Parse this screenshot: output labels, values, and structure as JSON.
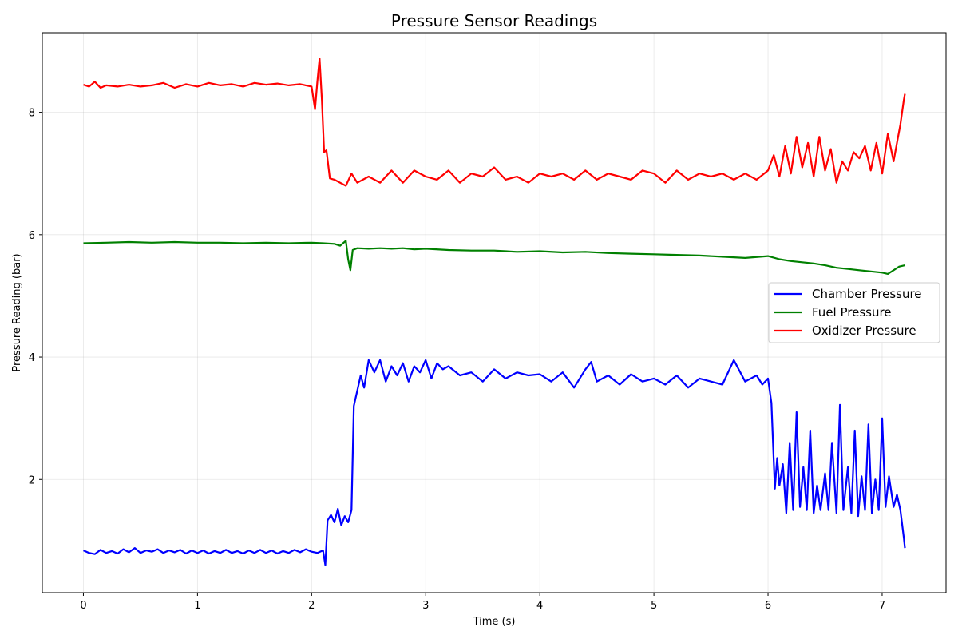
{
  "chart_data": {
    "type": "line",
    "title": "Pressure Sensor Readings",
    "xlabel": "Time (s)",
    "ylabel": "Pressure Reading (bar)",
    "xlim": [
      -0.36,
      7.56
    ],
    "ylim": [
      0.15,
      9.3
    ],
    "xticks": [
      0,
      1,
      2,
      3,
      4,
      5,
      6,
      7
    ],
    "yticks": [
      2,
      4,
      6,
      8
    ],
    "grid": true,
    "legend_position": "center-right",
    "series": [
      {
        "name": "Chamber Pressure",
        "color": "#0000ff",
        "x": [
          0,
          0.05,
          0.1,
          0.15,
          0.2,
          0.25,
          0.3,
          0.35,
          0.4,
          0.45,
          0.5,
          0.55,
          0.6,
          0.65,
          0.7,
          0.75,
          0.8,
          0.85,
          0.9,
          0.95,
          1.0,
          1.05,
          1.1,
          1.15,
          1.2,
          1.25,
          1.3,
          1.35,
          1.4,
          1.45,
          1.5,
          1.55,
          1.6,
          1.65,
          1.7,
          1.75,
          1.8,
          1.85,
          1.9,
          1.95,
          2.0,
          2.05,
          2.1,
          2.12,
          2.14,
          2.17,
          2.2,
          2.23,
          2.26,
          2.29,
          2.32,
          2.35,
          2.37,
          2.4,
          2.43,
          2.46,
          2.5,
          2.55,
          2.6,
          2.65,
          2.7,
          2.75,
          2.8,
          2.85,
          2.9,
          2.95,
          3.0,
          3.05,
          3.1,
          3.15,
          3.2,
          3.3,
          3.4,
          3.5,
          3.6,
          3.7,
          3.8,
          3.9,
          4.0,
          4.1,
          4.2,
          4.3,
          4.4,
          4.45,
          4.5,
          4.6,
          4.7,
          4.8,
          4.9,
          5.0,
          5.1,
          5.2,
          5.3,
          5.4,
          5.5,
          5.6,
          5.7,
          5.8,
          5.9,
          5.95,
          6.0,
          6.03,
          6.06,
          6.08,
          6.1,
          6.13,
          6.16,
          6.19,
          6.22,
          6.25,
          6.28,
          6.31,
          6.34,
          6.37,
          6.4,
          6.43,
          6.46,
          6.5,
          6.53,
          6.56,
          6.6,
          6.63,
          6.66,
          6.7,
          6.73,
          6.76,
          6.79,
          6.82,
          6.85,
          6.88,
          6.91,
          6.94,
          6.97,
          7.0,
          7.03,
          7.06,
          7.1,
          7.13,
          7.16,
          7.19,
          7.2
        ],
        "values": [
          0.84,
          0.8,
          0.78,
          0.85,
          0.8,
          0.83,
          0.79,
          0.86,
          0.81,
          0.88,
          0.8,
          0.84,
          0.82,
          0.86,
          0.8,
          0.84,
          0.81,
          0.85,
          0.79,
          0.84,
          0.8,
          0.84,
          0.79,
          0.83,
          0.8,
          0.85,
          0.8,
          0.83,
          0.79,
          0.84,
          0.8,
          0.85,
          0.8,
          0.84,
          0.79,
          0.83,
          0.8,
          0.85,
          0.81,
          0.86,
          0.82,
          0.8,
          0.84,
          0.6,
          1.33,
          1.42,
          1.3,
          1.52,
          1.25,
          1.4,
          1.3,
          1.5,
          3.2,
          3.45,
          3.7,
          3.5,
          3.95,
          3.75,
          3.95,
          3.6,
          3.85,
          3.7,
          3.9,
          3.6,
          3.85,
          3.75,
          3.95,
          3.65,
          3.9,
          3.8,
          3.85,
          3.7,
          3.75,
          3.6,
          3.8,
          3.65,
          3.75,
          3.7,
          3.72,
          3.6,
          3.75,
          3.5,
          3.8,
          3.92,
          3.6,
          3.7,
          3.55,
          3.72,
          3.6,
          3.65,
          3.55,
          3.7,
          3.5,
          3.65,
          3.6,
          3.55,
          3.95,
          3.6,
          3.7,
          3.55,
          3.65,
          3.25,
          1.85,
          2.35,
          1.9,
          2.25,
          1.45,
          2.6,
          1.5,
          3.1,
          1.55,
          2.2,
          1.5,
          2.8,
          1.45,
          1.9,
          1.5,
          2.1,
          1.5,
          2.6,
          1.45,
          3.22,
          1.5,
          2.2,
          1.45,
          2.8,
          1.4,
          2.05,
          1.5,
          2.9,
          1.45,
          2.0,
          1.5,
          3.0,
          1.55,
          2.05,
          1.55,
          1.75,
          1.5,
          1.05,
          0.88
        ]
      },
      {
        "name": "Fuel Pressure",
        "color": "#008000",
        "x": [
          0,
          0.2,
          0.4,
          0.6,
          0.8,
          1.0,
          1.2,
          1.4,
          1.6,
          1.8,
          2.0,
          2.1,
          2.2,
          2.25,
          2.3,
          2.32,
          2.34,
          2.36,
          2.4,
          2.5,
          2.6,
          2.7,
          2.8,
          2.9,
          3.0,
          3.2,
          3.4,
          3.6,
          3.8,
          4.0,
          4.2,
          4.4,
          4.6,
          4.8,
          5.0,
          5.2,
          5.4,
          5.6,
          5.8,
          6.0,
          6.1,
          6.2,
          6.3,
          6.4,
          6.5,
          6.6,
          6.7,
          6.8,
          6.9,
          7.0,
          7.05,
          7.1,
          7.15,
          7.2
        ],
        "values": [
          5.86,
          5.87,
          5.88,
          5.87,
          5.88,
          5.87,
          5.87,
          5.86,
          5.87,
          5.86,
          5.87,
          5.86,
          5.85,
          5.82,
          5.9,
          5.6,
          5.42,
          5.75,
          5.78,
          5.77,
          5.78,
          5.77,
          5.78,
          5.76,
          5.77,
          5.75,
          5.74,
          5.74,
          5.72,
          5.73,
          5.71,
          5.72,
          5.7,
          5.69,
          5.68,
          5.67,
          5.66,
          5.64,
          5.62,
          5.65,
          5.6,
          5.57,
          5.55,
          5.53,
          5.5,
          5.46,
          5.44,
          5.42,
          5.4,
          5.38,
          5.36,
          5.42,
          5.48,
          5.5
        ]
      },
      {
        "name": "Oxidizer Pressure",
        "color": "#ff0000",
        "x": [
          0,
          0.05,
          0.1,
          0.15,
          0.2,
          0.3,
          0.4,
          0.5,
          0.6,
          0.7,
          0.8,
          0.9,
          1.0,
          1.1,
          1.2,
          1.3,
          1.4,
          1.5,
          1.6,
          1.7,
          1.8,
          1.9,
          2.0,
          2.03,
          2.05,
          2.07,
          2.09,
          2.11,
          2.13,
          2.16,
          2.2,
          2.25,
          2.3,
          2.35,
          2.4,
          2.5,
          2.6,
          2.7,
          2.8,
          2.9,
          3.0,
          3.1,
          3.2,
          3.3,
          3.4,
          3.5,
          3.6,
          3.7,
          3.8,
          3.9,
          4.0,
          4.1,
          4.2,
          4.3,
          4.4,
          4.5,
          4.6,
          4.7,
          4.8,
          4.9,
          5.0,
          5.1,
          5.2,
          5.3,
          5.4,
          5.5,
          5.6,
          5.7,
          5.8,
          5.9,
          6.0,
          6.05,
          6.1,
          6.15,
          6.2,
          6.25,
          6.3,
          6.35,
          6.4,
          6.45,
          6.5,
          6.55,
          6.6,
          6.65,
          6.7,
          6.75,
          6.8,
          6.85,
          6.9,
          6.95,
          7.0,
          7.05,
          7.1,
          7.13,
          7.16,
          7.19,
          7.2
        ],
        "values": [
          8.45,
          8.42,
          8.5,
          8.4,
          8.44,
          8.42,
          8.45,
          8.42,
          8.44,
          8.48,
          8.4,
          8.46,
          8.42,
          8.48,
          8.44,
          8.46,
          8.42,
          8.48,
          8.45,
          8.47,
          8.44,
          8.46,
          8.42,
          8.05,
          8.5,
          8.88,
          8.2,
          7.35,
          7.38,
          6.92,
          6.9,
          6.85,
          6.8,
          7.0,
          6.85,
          6.95,
          6.85,
          7.05,
          6.85,
          7.05,
          6.95,
          6.9,
          7.05,
          6.85,
          7.0,
          6.95,
          7.1,
          6.9,
          6.95,
          6.85,
          7.0,
          6.95,
          7.0,
          6.9,
          7.05,
          6.9,
          7.0,
          6.95,
          6.9,
          7.05,
          7.0,
          6.85,
          7.05,
          6.9,
          7.0,
          6.95,
          7.0,
          6.9,
          7.0,
          6.9,
          7.05,
          7.3,
          6.95,
          7.45,
          7.0,
          7.6,
          7.1,
          7.5,
          6.95,
          7.6,
          7.05,
          7.4,
          6.85,
          7.2,
          7.05,
          7.35,
          7.25,
          7.45,
          7.05,
          7.5,
          7.0,
          7.65,
          7.2,
          7.5,
          7.8,
          8.2,
          8.3
        ]
      }
    ]
  }
}
